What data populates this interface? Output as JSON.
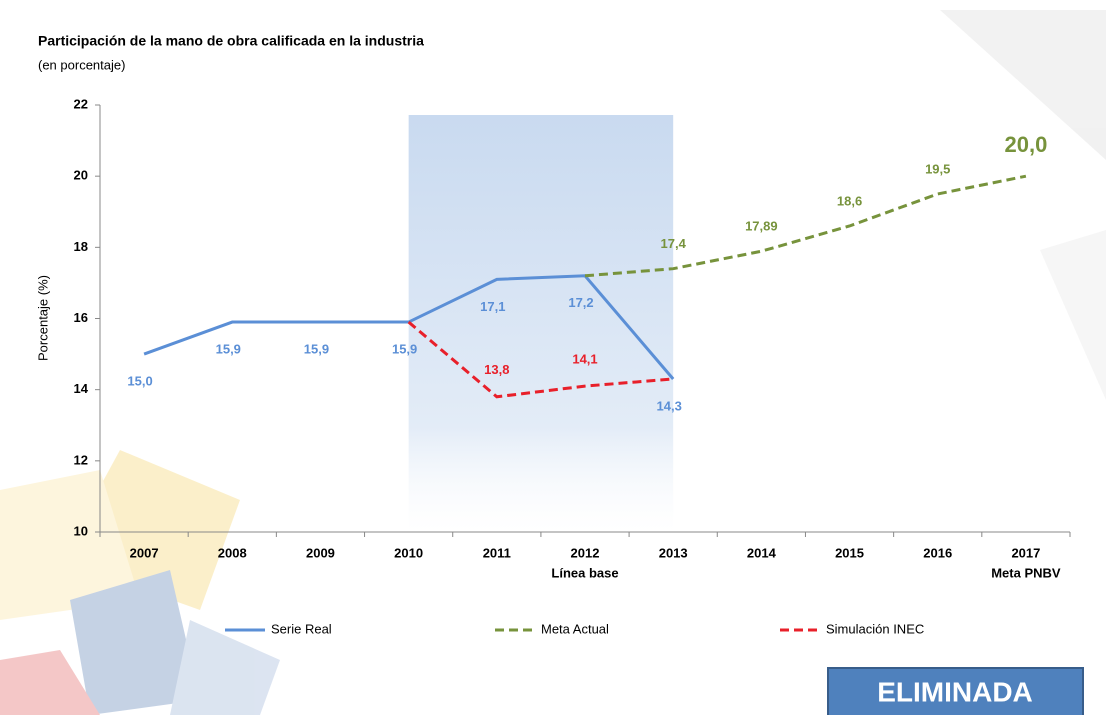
{
  "chart_data": {
    "type": "line",
    "title": "Participación de la mano de obra calificada en la industria",
    "subtitle": "(en porcentaje)",
    "y_label": "Porcentaje (%)",
    "categories": [
      "2007",
      "2008",
      "2009",
      "2010",
      "2011",
      "2012",
      "2013",
      "2014",
      "2015",
      "2016",
      "2017"
    ],
    "x_sublabels": {
      "2012": "Línea base",
      "2017": "Meta PNBV"
    },
    "shaded_range": [
      "2010",
      "2013"
    ],
    "series": [
      {
        "name": "Serie Real",
        "color": "#5b8fd6",
        "dash": false,
        "values": [
          15.0,
          15.9,
          15.9,
          15.9,
          17.1,
          17.2,
          14.3,
          null,
          null,
          null,
          null
        ],
        "value_labels": [
          "15,0",
          "15,9",
          "15,9",
          "15,9",
          "17,1",
          "17,2",
          "14,3",
          null,
          null,
          null,
          null
        ]
      },
      {
        "name": "Meta Actual",
        "color": "#77933c",
        "dash": true,
        "values": [
          null,
          null,
          null,
          null,
          null,
          17.2,
          17.4,
          17.89,
          18.6,
          19.5,
          20.0
        ],
        "value_labels": [
          null,
          null,
          null,
          null,
          null,
          null,
          "17,4",
          "17,89",
          "18,6",
          "19,5",
          "20,0"
        ]
      },
      {
        "name": "Simulación INEC",
        "color": "#e8202a",
        "dash": true,
        "values": [
          null,
          null,
          null,
          15.9,
          13.8,
          14.1,
          14.3,
          null,
          null,
          null,
          null
        ],
        "value_labels": [
          null,
          null,
          null,
          null,
          "13,8",
          "14,1",
          null,
          null,
          null,
          null,
          null
        ]
      }
    ],
    "ylim": [
      10,
      22
    ],
    "yticks": [
      10,
      12,
      14,
      16,
      18,
      20,
      22
    ],
    "banner": "ELIMINADA"
  }
}
